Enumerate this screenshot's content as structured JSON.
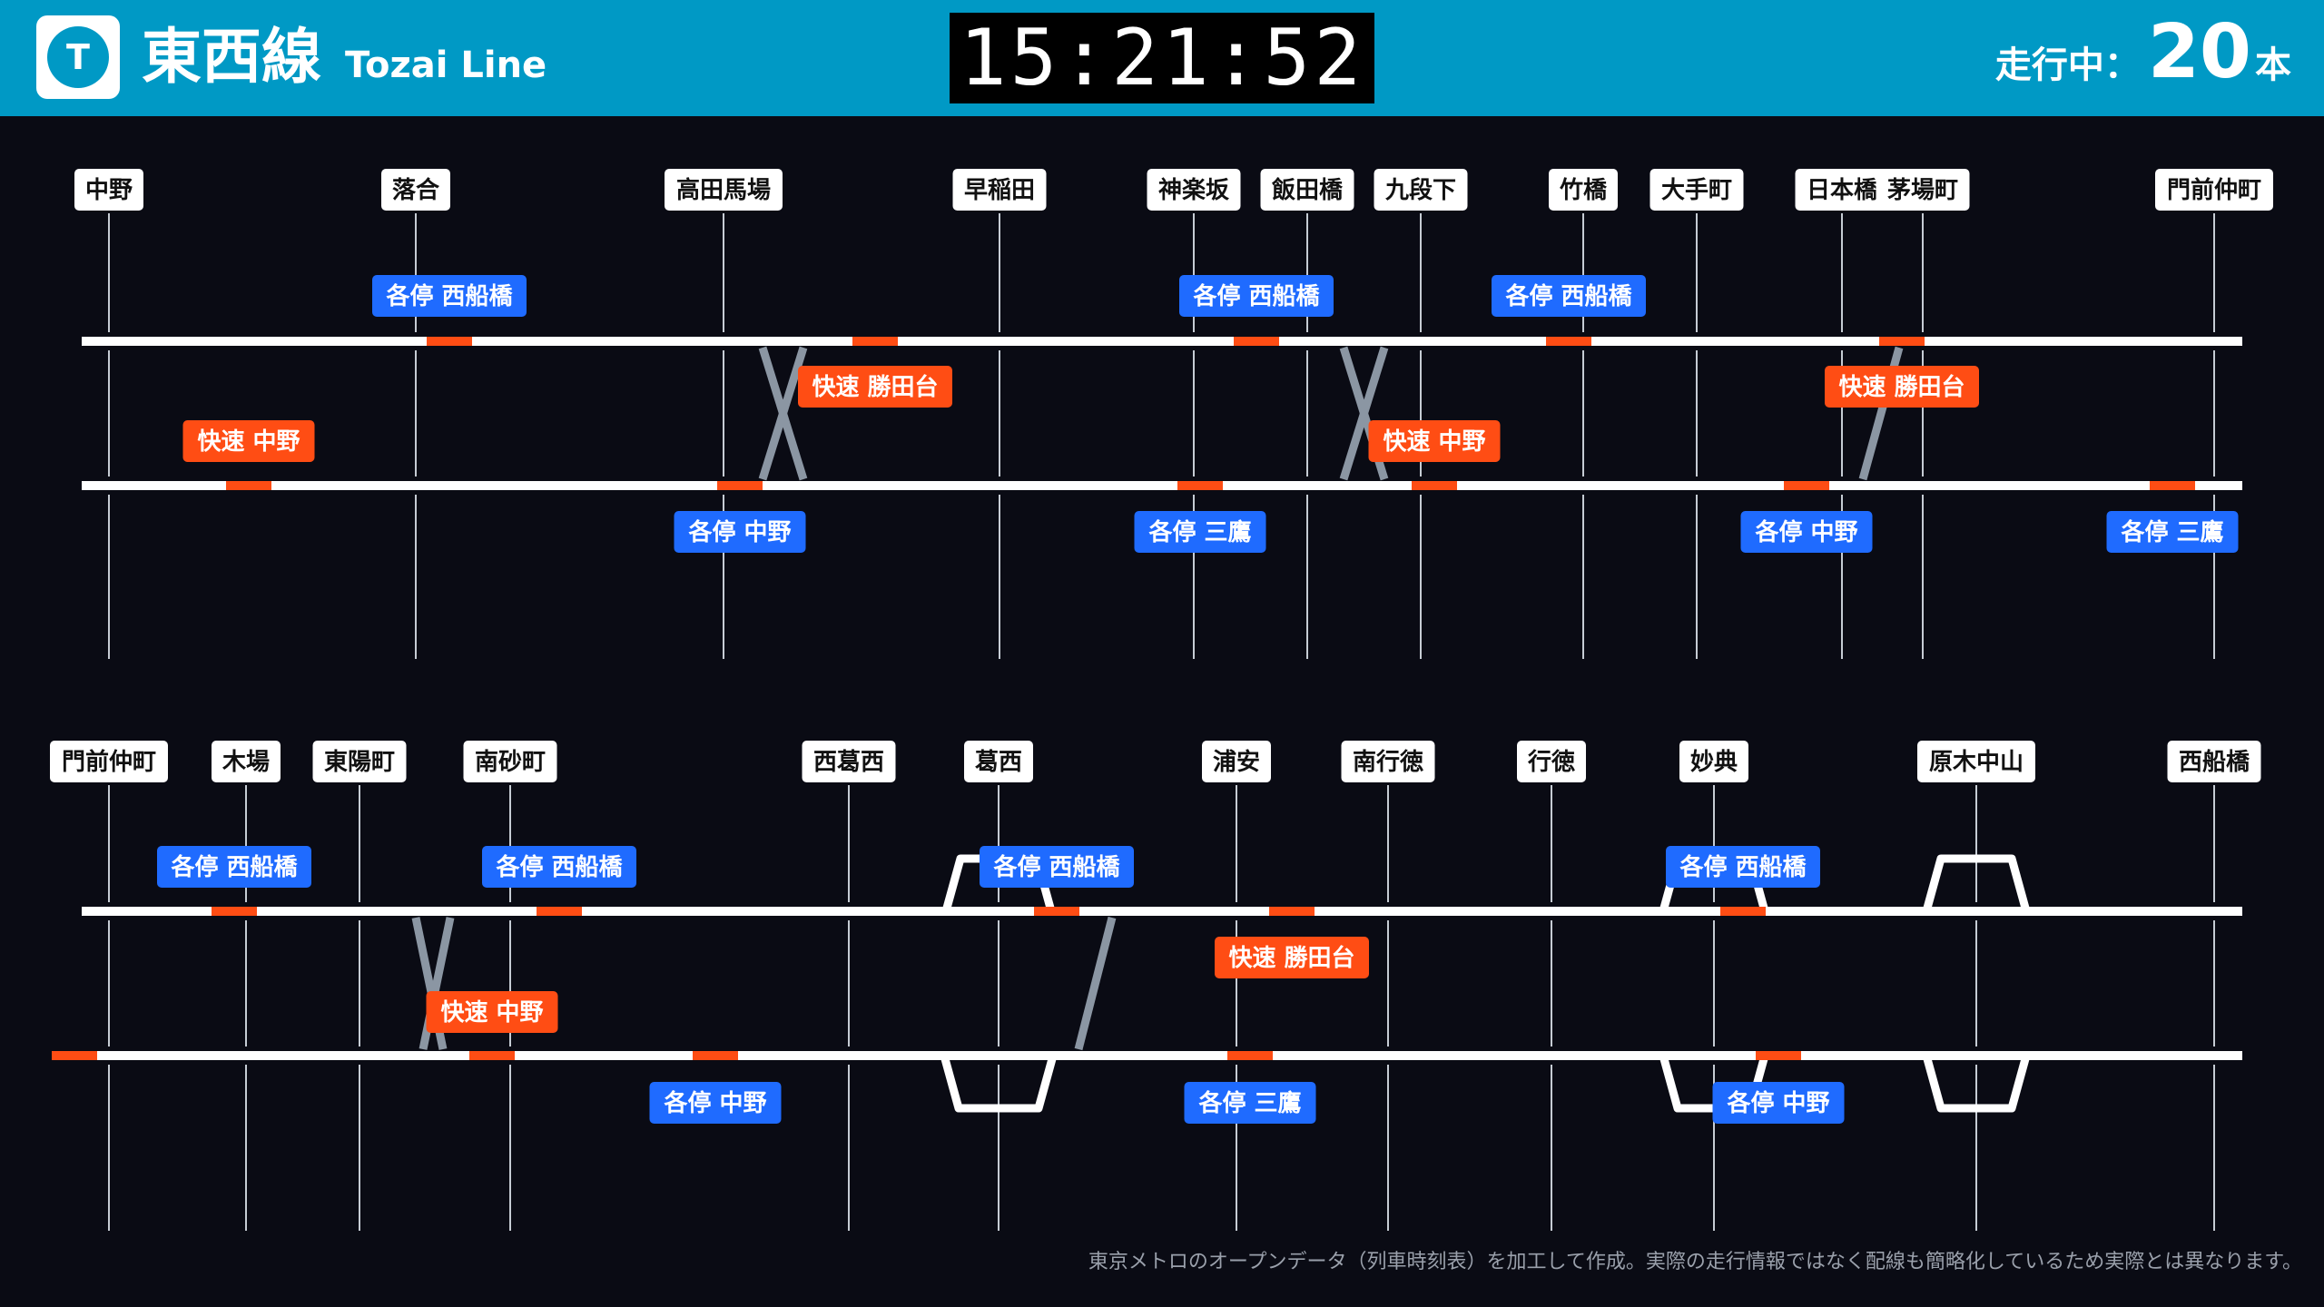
{
  "header": {
    "logo_letter": "T",
    "line_name_ja": "東西線",
    "line_name_en": "Tozai Line",
    "clock": "15:21:52",
    "running_label": "走行中：",
    "running_count": "20",
    "running_unit": "本"
  },
  "colors": {
    "header_bg": "#0099c5",
    "background": "#0a0b14",
    "local_badge": "#1f6bff",
    "rapid_badge": "#ff4d14",
    "train_marker": "#ff4d14",
    "track": "#ffffff",
    "crossover": "#8b96a3"
  },
  "sections": [
    {
      "stations": [
        "中野",
        "落合",
        "高田馬場",
        "早稲田",
        "神楽坂",
        "飯田橋",
        "九段下",
        "竹橋",
        "大手町",
        "日本橋",
        "茅場町",
        "門前仲町"
      ],
      "trains": [
        {
          "label": "各停 西船橋",
          "type": "local",
          "track": "upper"
        },
        {
          "label": "各停 西船橋",
          "type": "local",
          "track": "upper"
        },
        {
          "label": "各停 西船橋",
          "type": "local",
          "track": "upper"
        },
        {
          "label": "快速 勝田台",
          "type": "rapid",
          "track": "upper"
        },
        {
          "label": "快速 勝田台",
          "type": "rapid",
          "track": "upper"
        },
        {
          "label": "快速 中野",
          "type": "rapid",
          "track": "lower"
        },
        {
          "label": "快速 中野",
          "type": "rapid",
          "track": "lower"
        },
        {
          "label": "各停 中野",
          "type": "local",
          "track": "lower"
        },
        {
          "label": "各停 三鷹",
          "type": "local",
          "track": "lower"
        },
        {
          "label": "各停 中野",
          "type": "local",
          "track": "lower"
        },
        {
          "label": "各停 三鷹",
          "type": "local",
          "track": "lower"
        }
      ]
    },
    {
      "stations": [
        "門前仲町",
        "木場",
        "東陽町",
        "南砂町",
        "西葛西",
        "葛西",
        "浦安",
        "南行徳",
        "行徳",
        "妙典",
        "原木中山",
        "西船橋"
      ],
      "trains": [
        {
          "label": "各停 西船橋",
          "type": "local",
          "track": "upper"
        },
        {
          "label": "各停 西船橋",
          "type": "local",
          "track": "upper"
        },
        {
          "label": "各停 西船橋",
          "type": "local",
          "track": "upper"
        },
        {
          "label": "各停 西船橋",
          "type": "local",
          "track": "upper"
        },
        {
          "label": "快速 勝田台",
          "type": "rapid",
          "track": "upper"
        },
        {
          "label": "快速 中野",
          "type": "rapid",
          "track": "lower"
        },
        {
          "label": "各停 中野",
          "type": "local",
          "track": "lower"
        },
        {
          "label": "各停 三鷹",
          "type": "local",
          "track": "lower"
        },
        {
          "label": "各停 中野",
          "type": "local",
          "track": "lower"
        }
      ],
      "extra_markers": [
        "lower-track start marker"
      ]
    }
  ],
  "footnote": "東京メトロのオープンデータ（列車時刻表）を加工して作成。実際の走行情報ではなく配線も簡略化しているため実際とは異なります。"
}
